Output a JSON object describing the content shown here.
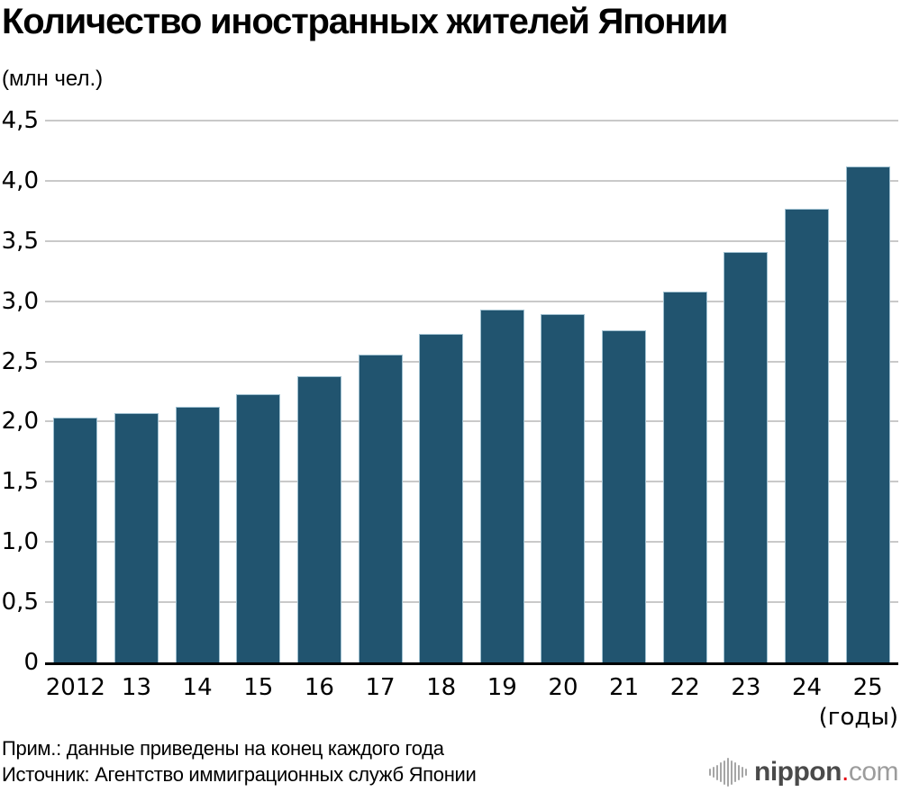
{
  "header": {
    "title": "Количество иностранных жителей Японии",
    "unit_label": "(млн чел.)"
  },
  "chart_data": {
    "type": "bar",
    "title": "Количество иностранных жителей Японии",
    "ylabel": "(млн чел.)",
    "x_axis_note": "(годы)",
    "categories": [
      "2012",
      "13",
      "14",
      "15",
      "16",
      "17",
      "18",
      "19",
      "20",
      "21",
      "22",
      "23",
      "24",
      "25"
    ],
    "values": [
      2.03,
      2.07,
      2.12,
      2.23,
      2.38,
      2.56,
      2.73,
      2.93,
      2.89,
      2.76,
      3.08,
      3.41,
      3.77,
      4.12
    ],
    "ylim": [
      0,
      4.5
    ],
    "ytick_step": 0.5,
    "ytick_labels": [
      "0",
      "0,5",
      "1,0",
      "1,5",
      "2,0",
      "2,5",
      "3,0",
      "3,5",
      "4,0",
      "4,5"
    ],
    "grid": true,
    "legend": "none",
    "colors": {
      "bar": "#21546F",
      "bar_edge": "#9FC0D0",
      "gridline": "#C9C9C9",
      "axis": "#000000",
      "text": "#000000"
    }
  },
  "footer": {
    "note": "Прим.: данные приведены на конец каждого года",
    "source": "Источник: Агентство иммиграционных служб Японии"
  },
  "logo": {
    "brand": "nippon",
    "dot": ".",
    "tld": "com",
    "colors": {
      "brand": "#4A4A4A",
      "dot": "#E60012",
      "tld": "#9C9C9C",
      "icon": "#A6A6A6"
    }
  }
}
